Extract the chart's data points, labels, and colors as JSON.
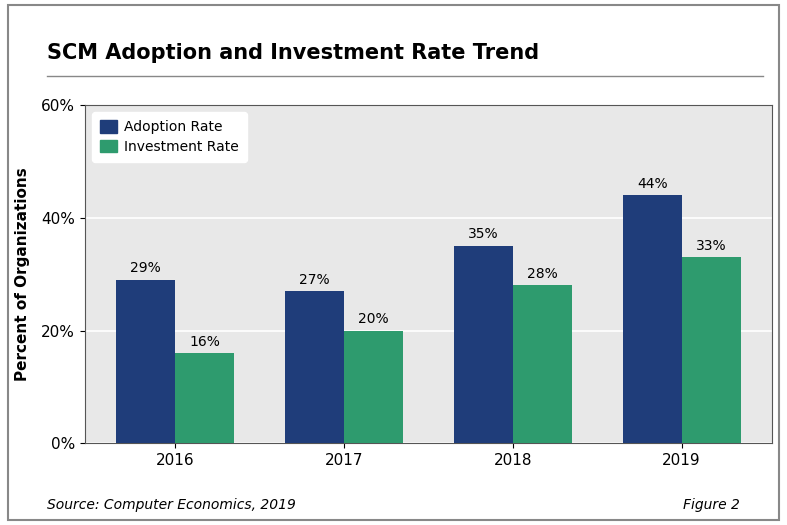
{
  "title": "SCM Adoption and Investment Rate Trend",
  "years": [
    "2016",
    "2017",
    "2018",
    "2019"
  ],
  "adoption_rates": [
    29,
    27,
    35,
    44
  ],
  "investment_rates": [
    16,
    20,
    28,
    33
  ],
  "adoption_color": "#1F3D7A",
  "investment_color": "#2E9B6E",
  "ylabel": "Percent of Organizations",
  "ylim": [
    0,
    60
  ],
  "yticks": [
    0,
    20,
    40,
    60
  ],
  "ytick_labels": [
    "0%",
    "20%",
    "40%",
    "60%"
  ],
  "plot_bg_color": "#E8E8E8",
  "outer_bg_color": "#FFFFFF",
  "bar_width": 0.35,
  "legend_labels": [
    "Adoption Rate",
    "Investment Rate"
  ],
  "source_text": "Source: Computer Economics, 2019",
  "figure_label": "Figure 2",
  "title_fontsize": 15,
  "axis_fontsize": 11,
  "label_fontsize": 10,
  "annotation_fontsize": 10,
  "source_fontsize": 10
}
